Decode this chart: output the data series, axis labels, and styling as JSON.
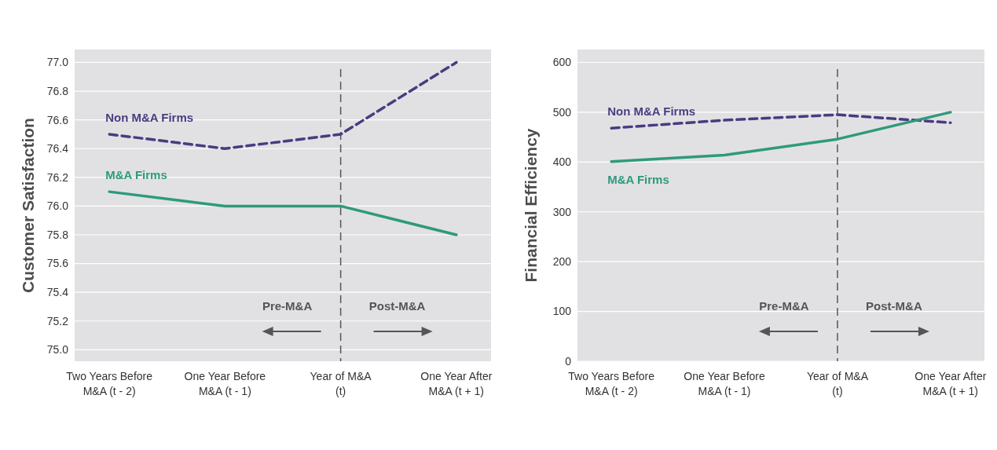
{
  "chart_data": [
    {
      "type": "line",
      "ylabel": "Customer Satisfaction",
      "categories": [
        "Two Years Before\nM&A (t - 2)",
        "One Year Before\nM&A (t - 1)",
        "Year of M&A\n(t)",
        "One Year After\nM&A (t + 1)"
      ],
      "series": [
        {
          "name": "Non M&A Firms",
          "color": "#4b3b80",
          "line_style": "dashed",
          "values": [
            76.5,
            76.4,
            76.5,
            77.0
          ]
        },
        {
          "name": "M&A Firms",
          "color": "#2e9a7c",
          "line_style": "solid",
          "values": [
            76.1,
            76.0,
            76.0,
            75.8
          ]
        }
      ],
      "ylim": [
        74.92,
        77.09
      ],
      "yticks": [
        {
          "value": 75,
          "label": "75.0"
        },
        {
          "value": 75.2,
          "label": "75.2"
        },
        {
          "value": 75.4,
          "label": "75.4"
        },
        {
          "value": 75.6,
          "label": "75.6"
        },
        {
          "value": 75.8,
          "label": "75.8"
        },
        {
          "value": 76,
          "label": "76.0"
        },
        {
          "value": 76.2,
          "label": "76.2"
        },
        {
          "value": 76.4,
          "label": "76.4"
        },
        {
          "value": 76.6,
          "label": "76.6"
        },
        {
          "value": 76.8,
          "label": "76.8"
        },
        {
          "value": 77,
          "label": "77.0"
        }
      ],
      "grid": "y",
      "ref_lines": [
        {
          "axis": "x",
          "value": "Year of M&A\n(t)",
          "line_style": "dashed",
          "color": "#555555"
        }
      ],
      "annotations": [
        "Pre-M&A",
        "Post-M&A"
      ]
    },
    {
      "type": "line",
      "ylabel": "Financial Efficiency",
      "categories": [
        "Two Years Before\nM&A (t - 2)",
        "One Year Before\nM&A (t - 1)",
        "Year of M&A\n(t)",
        "One Year After\nM&A (t + 1)"
      ],
      "series": [
        {
          "name": "Non M&A Firms",
          "color": "#4b3b80",
          "line_style": "dashed",
          "values": [
            468,
            484,
            495,
            479
          ]
        },
        {
          "name": "M&A Firms",
          "color": "#2e9a7c",
          "line_style": "solid",
          "values": [
            401,
            414,
            446,
            500
          ]
        }
      ],
      "ylim": [
        0,
        626
      ],
      "yticks": [
        0,
        100,
        200,
        300,
        400,
        500,
        600
      ],
      "grid": "y",
      "ref_lines": [
        {
          "axis": "x",
          "value": "Year of M&A\n(t)",
          "line_style": "dashed",
          "color": "#555555"
        }
      ],
      "annotations": [
        "Pre-M&A",
        "Post-M&A"
      ]
    }
  ]
}
